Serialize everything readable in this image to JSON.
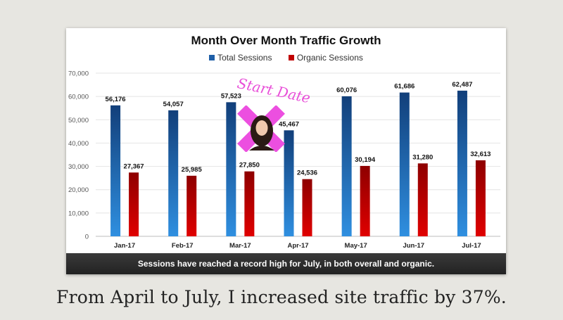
{
  "chart_data": {
    "type": "bar",
    "title": "Month Over Month Traffic Growth",
    "categories": [
      "Jan-17",
      "Feb-17",
      "Mar-17",
      "Apr-17",
      "May-17",
      "Jun-17",
      "Jul-17"
    ],
    "series": [
      {
        "name": "Total Sessions",
        "color": "#1f5fa8",
        "values": [
          56176,
          54057,
          57523,
          45467,
          60076,
          61686,
          62487
        ],
        "labels": [
          "56,176",
          "54,057",
          "57,523",
          "45,467",
          "60,076",
          "61,686",
          "62,487"
        ]
      },
      {
        "name": "Organic Sessions",
        "color": "#c00000",
        "values": [
          27367,
          25985,
          27850,
          24536,
          30194,
          31280,
          32613
        ],
        "labels": [
          "27,367",
          "25,985",
          "27,850",
          "24,536",
          "30,194",
          "31,280",
          "32,613"
        ]
      }
    ],
    "ylim": [
      0,
      70000
    ],
    "yticks": [
      0,
      10000,
      20000,
      30000,
      40000,
      50000,
      60000,
      70000
    ],
    "ytick_labels": [
      "0",
      "10,000",
      "20,000",
      "30,000",
      "40,000",
      "50,000",
      "60,000",
      "70,000"
    ],
    "grid": true,
    "legend_position": "top-center",
    "xlabel": "",
    "ylabel": ""
  },
  "banner_text": "Sessions have reached a record high for July, in both overall and organic.",
  "annotation_text": "Start Date",
  "caption": "From April to July, I increased site traffic by 37%.",
  "colors": {
    "accent_pink": "#e84fd8",
    "banner": "#2b2b2b"
  }
}
